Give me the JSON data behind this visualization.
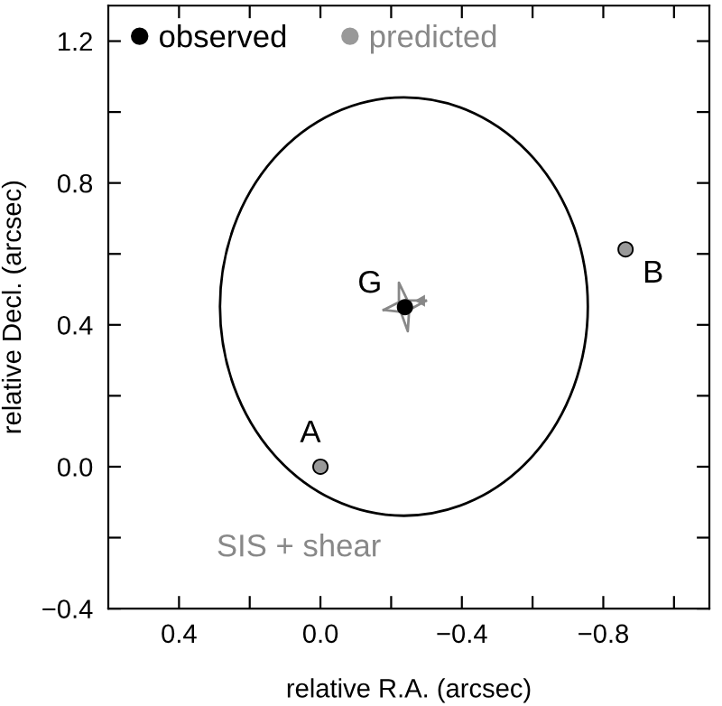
{
  "chart_data": {
    "type": "line",
    "xlabel": "relative R.A. (arcsec)",
    "ylabel": "relative Decl. (arcsec)",
    "xlim": [
      0.6,
      -1.1
    ],
    "ylim": [
      -0.4,
      1.3
    ],
    "xticks": [
      {
        "value": 0.4,
        "label": "0.4"
      },
      {
        "value": 0.2,
        "label": null
      },
      {
        "value": 0.0,
        "label": "0.0"
      },
      {
        "value": -0.2,
        "label": null
      },
      {
        "value": -0.4,
        "label": "−0.4"
      },
      {
        "value": -0.6,
        "label": null
      },
      {
        "value": -0.8,
        "label": "−0.8"
      },
      {
        "value": -1.0,
        "label": null
      }
    ],
    "yticks": [
      {
        "value": -0.4,
        "label": "−0.4"
      },
      {
        "value": -0.2,
        "label": null
      },
      {
        "value": 0.0,
        "label": "0.0"
      },
      {
        "value": 0.2,
        "label": null
      },
      {
        "value": 0.4,
        "label": "0.4"
      },
      {
        "value": 0.6,
        "label": null
      },
      {
        "value": 0.8,
        "label": "0.8"
      },
      {
        "value": 1.0,
        "label": null
      },
      {
        "value": 1.2,
        "label": "1.2"
      }
    ],
    "grid": false,
    "legend": "top left",
    "series": [
      {
        "color": "#888888",
        "x": [
          -0.179,
          -0.222,
          -0.222,
          -0.246,
          -0.298
        ],
        "values": [
          0.442,
          0.464,
          0.519,
          0.469,
          0.468
        ]
      },
      {
        "color": "#888888",
        "x": [
          -0.179,
          -0.227,
          -0.247,
          -0.251,
          -0.298
        ],
        "values": [
          0.442,
          0.437,
          0.382,
          0.442,
          0.468
        ]
      },
      {
        "type": "scatter",
        "name": "observed",
        "color": "#000000",
        "marker": "circle",
        "x": [
          0.0,
          -0.863,
          -0.239
        ],
        "values": [
          0.0,
          0.613,
          0.45
        ]
      },
      {
        "type": "scatter",
        "name": "predicted",
        "color": "#999999",
        "marker": "circle",
        "x": [
          0.0,
          -0.863
        ],
        "values": [
          0.0,
          0.613
        ]
      },
      {
        "type": "scatter",
        "color": "#888888",
        "marker": "triangle",
        "x": [
          -0.286
        ],
        "values": [
          0.468
        ]
      }
    ],
    "annotations": [
      {
        "text": "A",
        "x": 0.0,
        "y": 0.0
      },
      {
        "text": "B",
        "x": -0.863,
        "y": 0.613
      },
      {
        "text": "G",
        "x": -0.239,
        "y": 0.45
      },
      "SIS + shear"
    ]
  }
}
